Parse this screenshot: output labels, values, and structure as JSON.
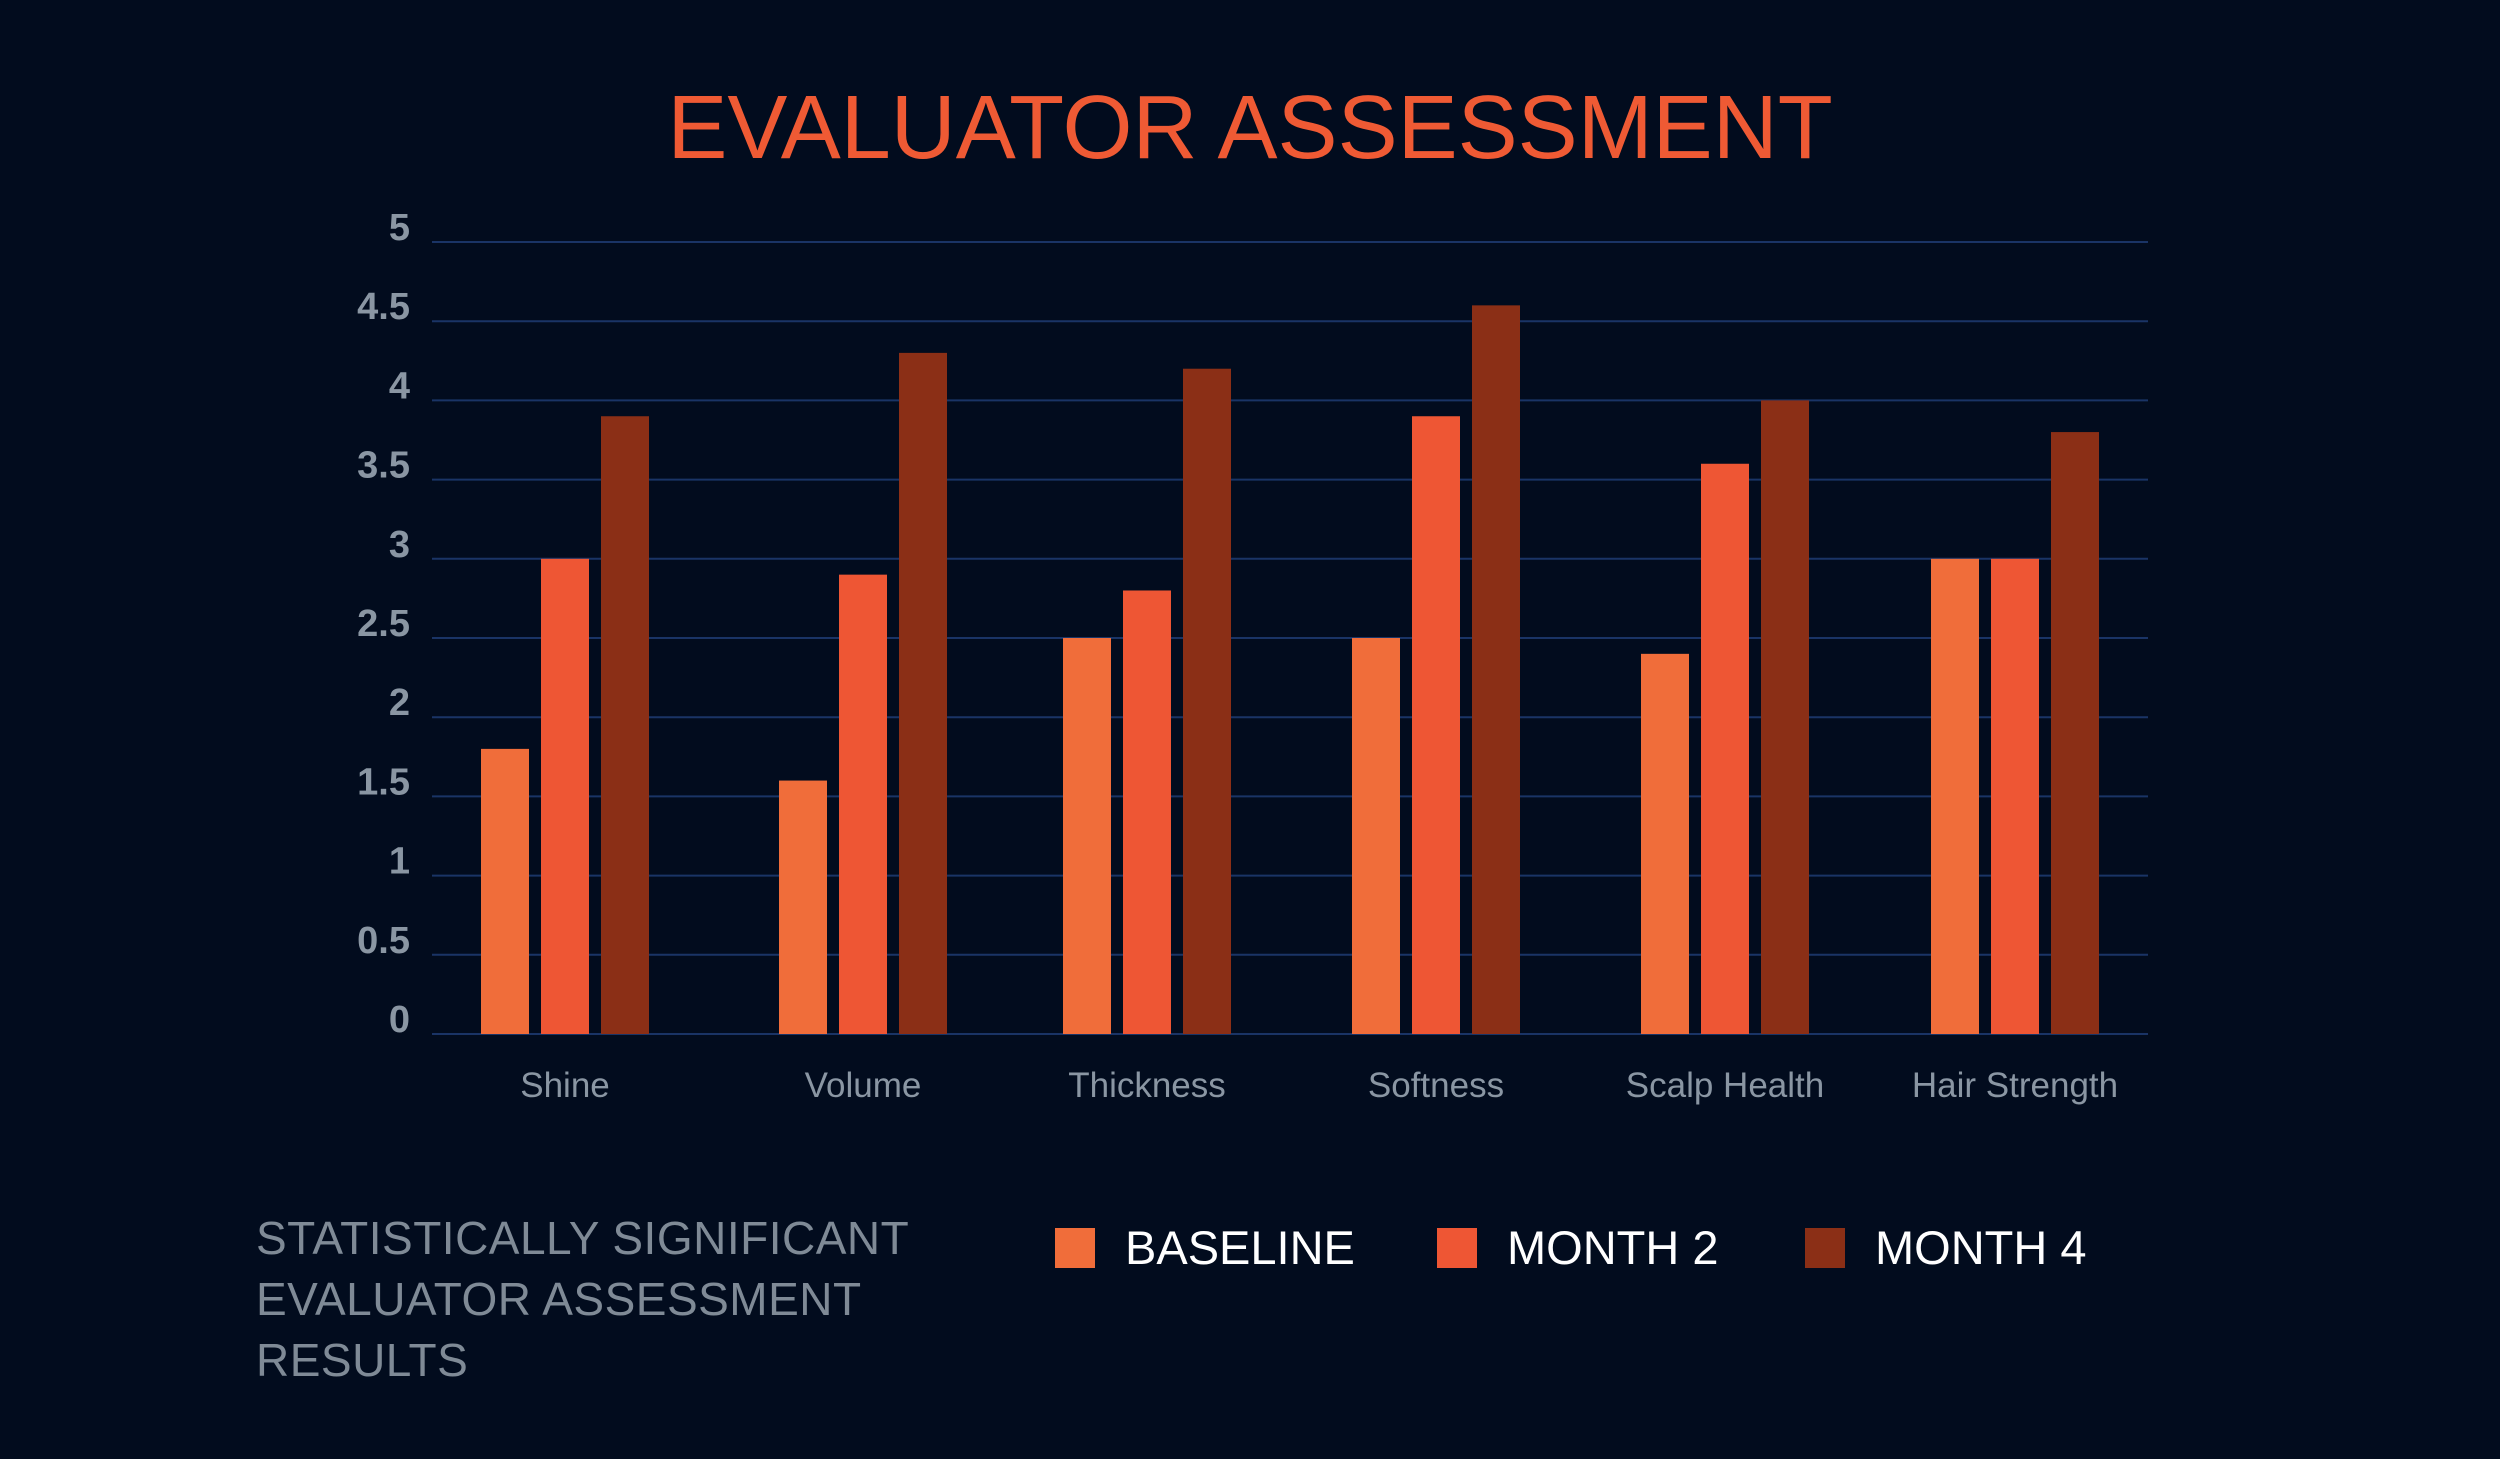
{
  "colors": {
    "background": "#020c1e",
    "title": "#ef5a34",
    "grid": "#1a3466",
    "tick_text": "#8a96a3",
    "category_text": "#8a96a3",
    "legend_text": "#ffffff",
    "note_text": "#7f8a96"
  },
  "chart_data": {
    "type": "bar",
    "title": "EVALUATOR ASSESSMENT",
    "categories": [
      "Shine",
      "Volume",
      "Thickness",
      "Softness",
      "Scalp Health",
      "Hair Strength"
    ],
    "series": [
      {
        "name": "BASELINE",
        "color": "#f06d3a",
        "values": [
          1.8,
          1.6,
          2.5,
          2.5,
          2.4,
          3.0
        ]
      },
      {
        "name": "MONTH 2",
        "color": "#ee5634",
        "values": [
          3.0,
          2.9,
          2.8,
          3.9,
          3.6,
          3.0
        ]
      },
      {
        "name": "MONTH 4",
        "color": "#8b2f16",
        "values": [
          3.9,
          4.3,
          4.2,
          4.6,
          4.0,
          3.8
        ]
      }
    ],
    "yticks": [
      "0",
      "0.5",
      "1",
      "1.5",
      "2",
      "2.5",
      "3",
      "3.5",
      "4",
      "4.5",
      "5"
    ],
    "ylim": [
      0,
      5
    ],
    "grid": true,
    "legend_position": "bottom"
  },
  "footnote": {
    "lines": [
      "STATISTICALLY SIGNIFICANT",
      "EVALUATOR ASSESSMENT",
      "RESULTS"
    ]
  }
}
